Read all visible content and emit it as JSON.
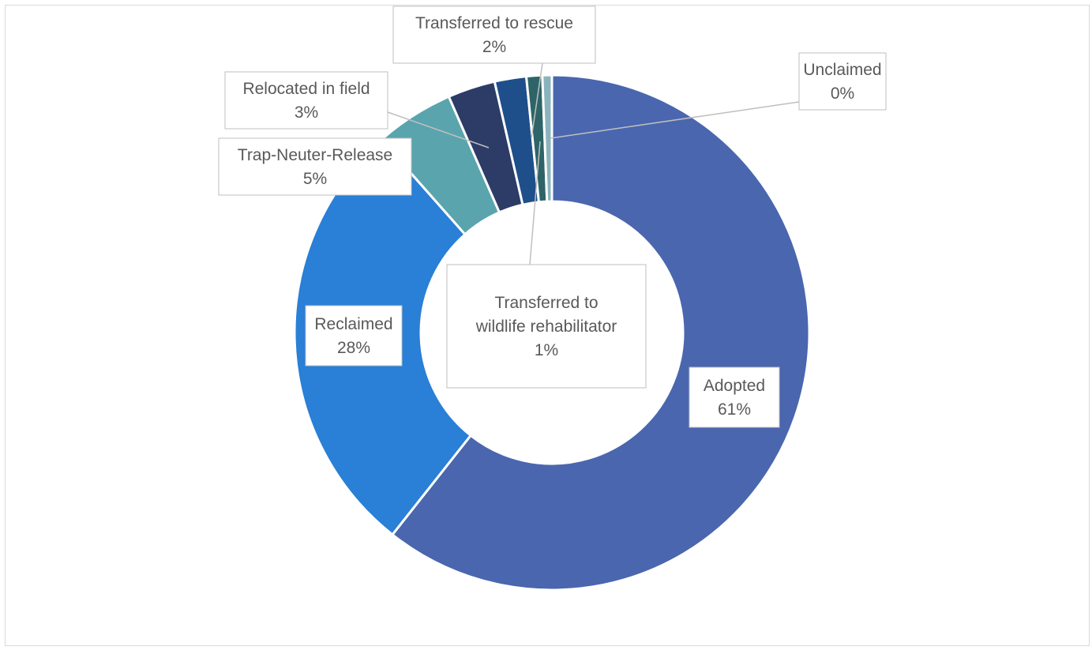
{
  "chart_data": {
    "type": "pie",
    "donut": true,
    "title": "",
    "legend": "none",
    "data_labels": "category name and percentage in callout boxes",
    "slices": [
      {
        "label": "Adopted",
        "value": 61,
        "display": "61%",
        "color": "#4a66ae"
      },
      {
        "label": "Reclaimed",
        "value": 28,
        "display": "28%",
        "color": "#2a7fd6"
      },
      {
        "label": "Trap-Neuter-Release",
        "value": 5,
        "display": "5%",
        "color": "#5aa4ae"
      },
      {
        "label": "Relocated in field",
        "value": 3,
        "display": "3%",
        "color": "#2c3c66"
      },
      {
        "label": "Transferred to rescue",
        "value": 2,
        "display": "2%",
        "color": "#1e4f8a"
      },
      {
        "label": "Transferred to wildlife rehabilitator",
        "value": 1,
        "display": "1%",
        "color": "#2e6467"
      },
      {
        "label": "Unclaimed",
        "value": 0,
        "display": "0%",
        "color": "#8ab4bd"
      }
    ]
  }
}
